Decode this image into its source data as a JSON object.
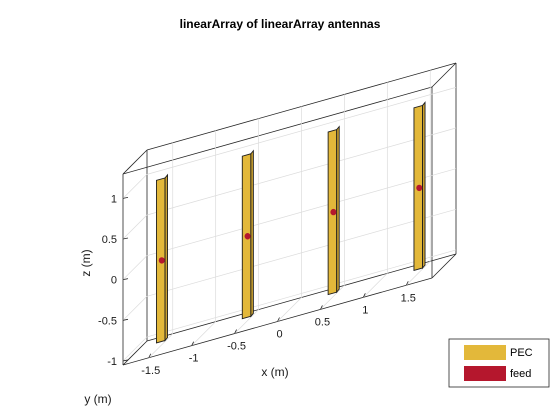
{
  "chart_data": {
    "type": "3d-antenna-geometry",
    "title": "linearArray of linearArray antennas",
    "xlabel": "x (m)",
    "ylabel": "y (m)",
    "zlabel": "z (m)",
    "x_ticks": [
      "-1.5",
      "-1",
      "-0.5",
      "0",
      "0.5",
      "1",
      "1.5"
    ],
    "z_ticks": [
      "-1",
      "-0.5",
      "0",
      "0.5",
      "1"
    ],
    "grid": true,
    "legend_position": "bottom-right",
    "legend": [
      {
        "label": "PEC",
        "color": "#e3b83a"
      },
      {
        "label": "feed",
        "color": "#b5172d"
      }
    ],
    "elements": [
      {
        "x": -1.5,
        "zmin": -1,
        "zmax": 1,
        "feed_z": 0
      },
      {
        "x": -0.5,
        "zmin": -1,
        "zmax": 1,
        "feed_z": 0
      },
      {
        "x": 0.5,
        "zmin": -1,
        "zmax": 1,
        "feed_z": 0
      },
      {
        "x": 1.5,
        "zmin": -1,
        "zmax": 1,
        "feed_z": 0
      }
    ]
  }
}
